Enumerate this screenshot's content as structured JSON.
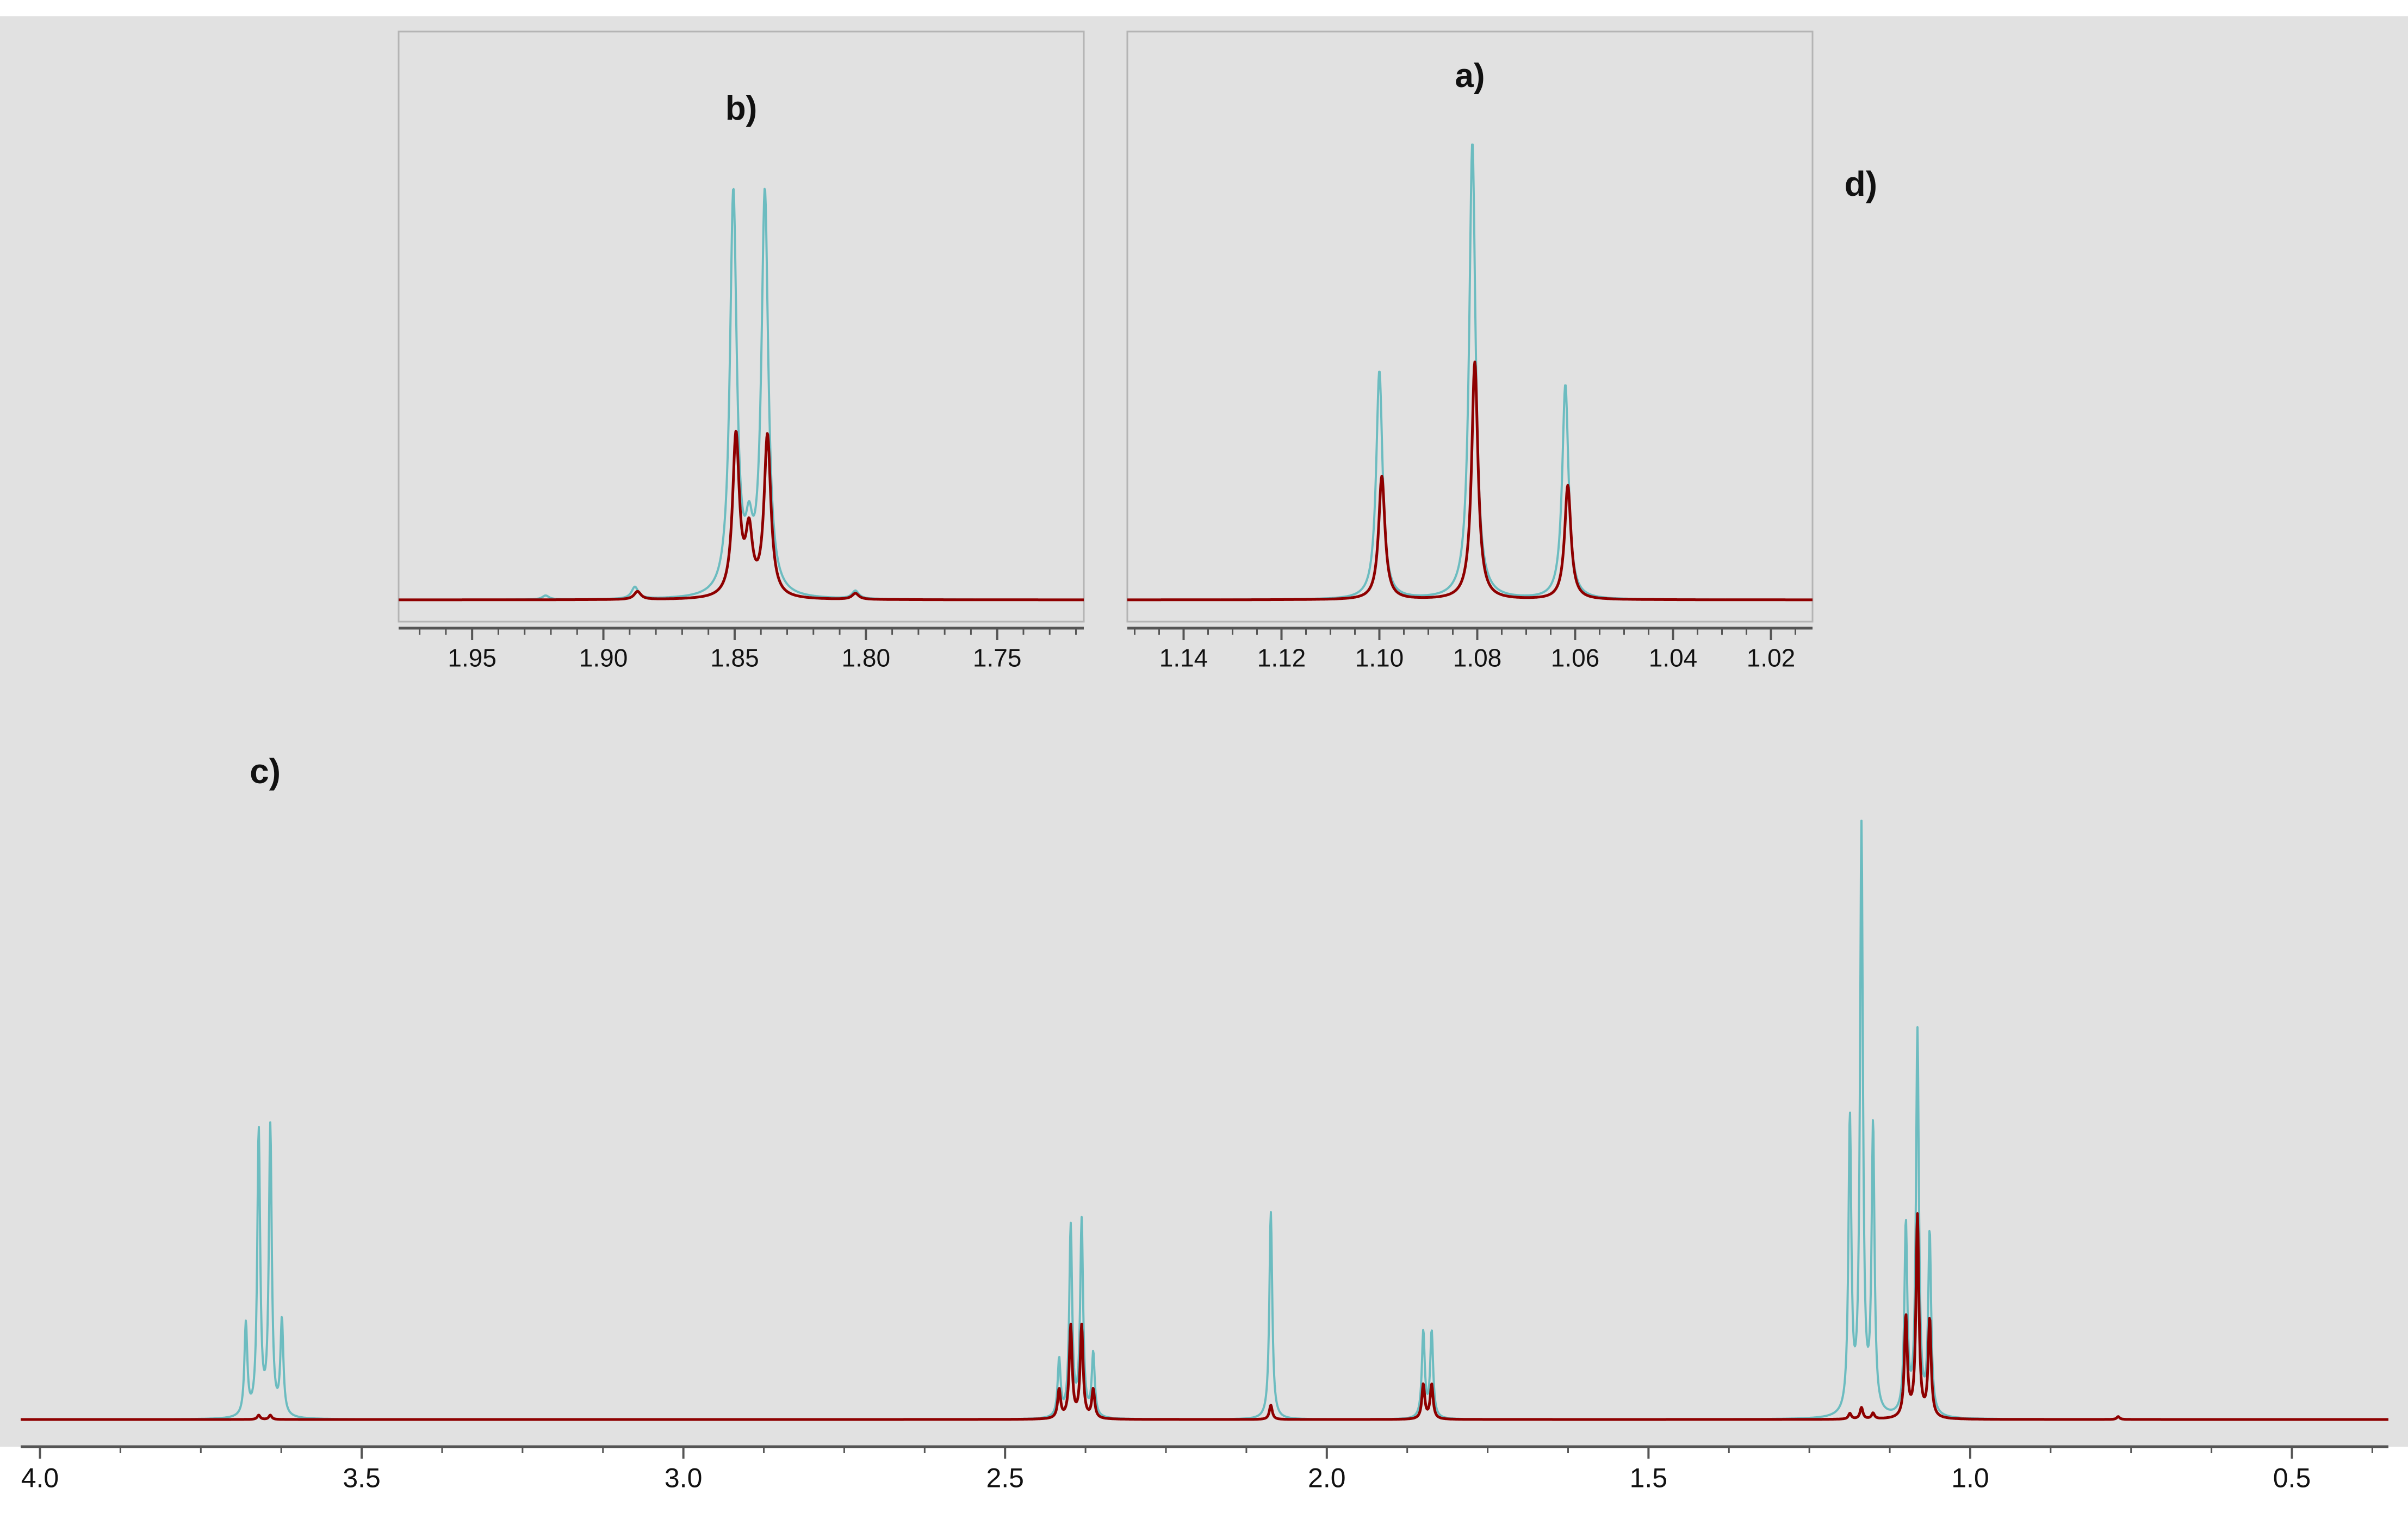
{
  "colors": {
    "background": "#e1e1e1",
    "page": "#ffffff",
    "panel_border": "#b4b4b4",
    "axis": "#555555",
    "text": "#111111",
    "series_a": "#6cbcc0",
    "series_b": "#8e0000"
  },
  "chart_data": [
    {
      "type": "line",
      "title": "",
      "xlabel": "",
      "ylabel": "",
      "xlim": [
        4.03,
        0.35
      ],
      "x_reversed": true,
      "grid": false,
      "legend": "none",
      "x_ticks": [
        "4.0",
        "3.5",
        "3.0",
        "2.5",
        "2.0",
        "1.5",
        "1.0",
        "0.5"
      ],
      "x_tick_values": [
        4.0,
        3.5,
        3.0,
        2.5,
        2.0,
        1.5,
        1.0,
        0.5
      ],
      "annotations": [
        {
          "label": "c)",
          "x": 3.65
        },
        {
          "label": "d)",
          "x": 1.17
        }
      ],
      "series": [
        {
          "color_key": "series_a",
          "peaks": [
            {
              "x": 3.68,
              "y": 0.32
            },
            {
              "x": 3.66,
              "y": 0.99
            },
            {
              "x": 3.642,
              "y": 1.0
            },
            {
              "x": 3.624,
              "y": 0.33
            },
            {
              "x": 2.416,
              "y": 0.2
            },
            {
              "x": 2.398,
              "y": 0.66
            },
            {
              "x": 2.381,
              "y": 0.68
            },
            {
              "x": 2.363,
              "y": 0.22
            },
            {
              "x": 2.087,
              "y": 0.72
            },
            {
              "x": 1.85,
              "y": 0.3
            },
            {
              "x": 1.837,
              "y": 0.3
            },
            {
              "x": 1.187,
              "y": 1.02
            },
            {
              "x": 1.169,
              "y": 2.03
            },
            {
              "x": 1.151,
              "y": 0.99
            },
            {
              "x": 1.1,
              "y": 0.66
            },
            {
              "x": 1.082,
              "y": 1.33
            },
            {
              "x": 1.063,
              "y": 0.63
            },
            {
              "x": 0.77,
              "y": 0.01
            }
          ]
        },
        {
          "color_key": "series_b",
          "peaks": [
            {
              "x": 3.66,
              "y": 0.015
            },
            {
              "x": 3.642,
              "y": 0.015
            },
            {
              "x": 2.416,
              "y": 0.1
            },
            {
              "x": 2.398,
              "y": 0.32
            },
            {
              "x": 2.381,
              "y": 0.32
            },
            {
              "x": 2.363,
              "y": 0.1
            },
            {
              "x": 2.087,
              "y": 0.05
            },
            {
              "x": 1.85,
              "y": 0.12
            },
            {
              "x": 1.837,
              "y": 0.12
            },
            {
              "x": 1.187,
              "y": 0.02
            },
            {
              "x": 1.169,
              "y": 0.04
            },
            {
              "x": 1.151,
              "y": 0.02
            },
            {
              "x": 1.1,
              "y": 0.35
            },
            {
              "x": 1.082,
              "y": 0.7
            },
            {
              "x": 1.063,
              "y": 0.34
            },
            {
              "x": 0.77,
              "y": 0.01
            }
          ]
        }
      ]
    },
    {
      "type": "line",
      "title": "b)",
      "xlabel": "",
      "ylabel": "",
      "xlim": [
        1.978,
        1.717
      ],
      "x_reversed": true,
      "grid": false,
      "legend": "none",
      "x_ticks": [
        "1.95",
        "1.90",
        "1.85",
        "1.80",
        "1.75"
      ],
      "x_tick_values": [
        1.95,
        1.9,
        1.85,
        1.8,
        1.75
      ],
      "series": [
        {
          "color_key": "series_a",
          "peaks": [
            {
              "x": 1.8505,
              "y": 1.0
            },
            {
              "x": 1.8385,
              "y": 1.0
            },
            {
              "x": 1.8445,
              "y": 0.12
            },
            {
              "x": 1.888,
              "y": 0.03
            },
            {
              "x": 1.804,
              "y": 0.02
            },
            {
              "x": 1.922,
              "y": 0.01
            }
          ]
        },
        {
          "color_key": "series_b",
          "peaks": [
            {
              "x": 1.8495,
              "y": 0.4
            },
            {
              "x": 1.8375,
              "y": 0.4
            },
            {
              "x": 1.8445,
              "y": 0.15
            },
            {
              "x": 1.887,
              "y": 0.02
            },
            {
              "x": 1.804,
              "y": 0.015
            }
          ]
        }
      ]
    },
    {
      "type": "line",
      "title": "a)",
      "xlabel": "",
      "ylabel": "",
      "xlim": [
        1.1515,
        1.0115
      ],
      "x_reversed": true,
      "grid": false,
      "legend": "none",
      "x_ticks": [
        "1.14",
        "1.12",
        "1.10",
        "1.08",
        "1.06",
        "1.04",
        "1.02"
      ],
      "x_tick_values": [
        1.14,
        1.12,
        1.1,
        1.08,
        1.06,
        1.04,
        1.02
      ],
      "series": [
        {
          "color_key": "series_a",
          "peaks": [
            {
              "x": 1.1,
              "y": 0.5
            },
            {
              "x": 1.081,
              "y": 1.0
            },
            {
              "x": 1.062,
              "y": 0.47
            }
          ]
        },
        {
          "color_key": "series_b",
          "peaks": [
            {
              "x": 1.0995,
              "y": 0.27
            },
            {
              "x": 1.0805,
              "y": 0.52
            },
            {
              "x": 1.0615,
              "y": 0.25
            }
          ]
        }
      ]
    }
  ]
}
